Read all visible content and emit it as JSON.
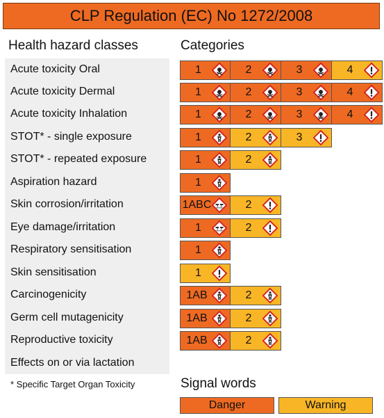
{
  "title": "CLP Regulation (EC) No 1272/2008",
  "headers": {
    "classes": "Health hazard classes",
    "categories": "Categories"
  },
  "colors": {
    "danger": "#ee6a22",
    "warning": "#f8b526"
  },
  "rows": [
    {
      "name": "Acute toxicity Oral",
      "cells": [
        {
          "label": "1",
          "signal": "danger",
          "icon": "skull-icon"
        },
        {
          "label": "2",
          "signal": "danger",
          "icon": "skull-icon"
        },
        {
          "label": "3",
          "signal": "danger",
          "icon": "skull-icon"
        },
        {
          "label": "4",
          "signal": "warning",
          "icon": "exclamation-icon"
        }
      ]
    },
    {
      "name": "Acute toxicity Dermal",
      "cells": [
        {
          "label": "1",
          "signal": "danger",
          "icon": "skull-icon"
        },
        {
          "label": "2",
          "signal": "danger",
          "icon": "skull-icon"
        },
        {
          "label": "3",
          "signal": "danger",
          "icon": "skull-icon"
        },
        {
          "label": "4",
          "signal": "danger",
          "icon": "exclamation-icon"
        }
      ]
    },
    {
      "name": "Acute toxicity Inhalation",
      "cells": [
        {
          "label": "1",
          "signal": "danger",
          "icon": "skull-icon"
        },
        {
          "label": "2",
          "signal": "danger",
          "icon": "skull-icon"
        },
        {
          "label": "3",
          "signal": "danger",
          "icon": "skull-icon"
        },
        {
          "label": "4",
          "signal": "danger",
          "icon": "exclamation-icon"
        }
      ]
    },
    {
      "name": "STOT* - single exposure",
      "cells": [
        {
          "label": "1",
          "signal": "danger",
          "icon": "health-hazard-icon"
        },
        {
          "label": "2",
          "signal": "warning",
          "icon": "health-hazard-icon"
        },
        {
          "label": "3",
          "signal": "warning",
          "icon": "exclamation-icon"
        }
      ]
    },
    {
      "name": "STOT* - repeated exposure",
      "cells": [
        {
          "label": "1",
          "signal": "danger",
          "icon": "health-hazard-icon"
        },
        {
          "label": "2",
          "signal": "warning",
          "icon": "health-hazard-icon"
        }
      ]
    },
    {
      "name": "Aspiration hazard",
      "cells": [
        {
          "label": "1",
          "signal": "danger",
          "icon": "health-hazard-icon"
        }
      ]
    },
    {
      "name": "Skin corrosion/irritation",
      "cells": [
        {
          "label": "1ABC",
          "signal": "danger",
          "icon": "corrosion-icon"
        },
        {
          "label": "2",
          "signal": "warning",
          "icon": "exclamation-icon"
        }
      ]
    },
    {
      "name": "Eye damage/irritation",
      "cells": [
        {
          "label": "1",
          "signal": "danger",
          "icon": "corrosion-icon"
        },
        {
          "label": "2",
          "signal": "warning",
          "icon": "exclamation-icon"
        }
      ]
    },
    {
      "name": "Respiratory sensitisation",
      "cells": [
        {
          "label": "1",
          "signal": "danger",
          "icon": "health-hazard-icon"
        }
      ]
    },
    {
      "name": "Skin sensitisation",
      "cells": [
        {
          "label": "1",
          "signal": "warning",
          "icon": "exclamation-icon"
        }
      ]
    },
    {
      "name": "Carcinogenicity",
      "cells": [
        {
          "label": "1AB",
          "signal": "danger",
          "icon": "health-hazard-icon"
        },
        {
          "label": "2",
          "signal": "warning",
          "icon": "health-hazard-icon"
        }
      ]
    },
    {
      "name": "Germ cell mutagenicity",
      "cells": [
        {
          "label": "1AB",
          "signal": "danger",
          "icon": "health-hazard-icon"
        },
        {
          "label": "2",
          "signal": "warning",
          "icon": "health-hazard-icon"
        }
      ]
    },
    {
      "name": "Reproductive toxicity",
      "cells": [
        {
          "label": "1AB",
          "signal": "danger",
          "icon": "health-hazard-icon"
        },
        {
          "label": "2",
          "signal": "warning",
          "icon": "health-hazard-icon"
        }
      ]
    },
    {
      "name": "Effects on or via lactation",
      "cells": []
    }
  ],
  "footnote": "* Specific Target Organ Toxicity",
  "signal_words": {
    "title": "Signal words",
    "danger": "Danger",
    "warning": "Warning"
  }
}
